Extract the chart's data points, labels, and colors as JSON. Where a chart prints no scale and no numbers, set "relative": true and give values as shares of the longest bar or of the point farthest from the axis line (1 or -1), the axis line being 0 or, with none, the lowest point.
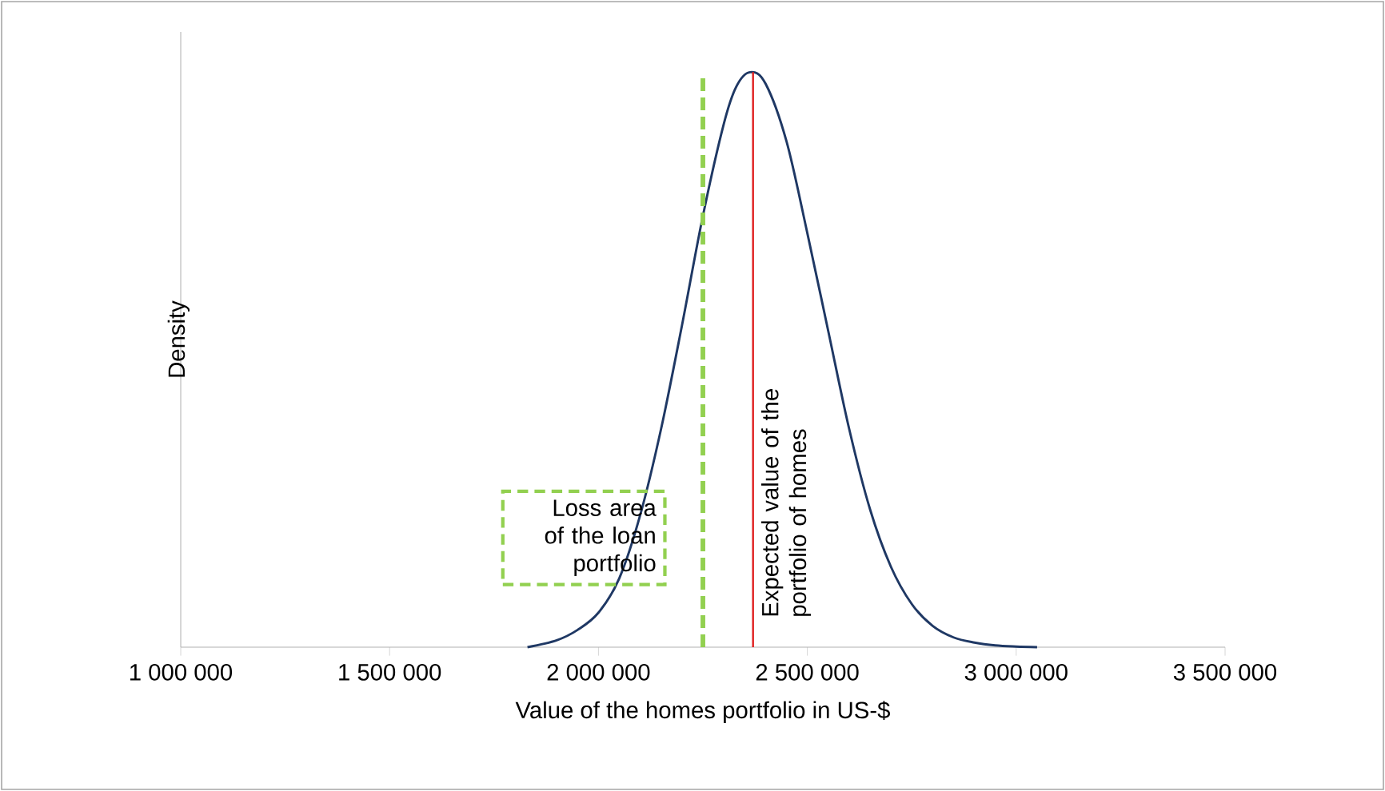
{
  "chart_data": {
    "type": "line",
    "relative": true,
    "xlabel": "Value of the homes portfolio  in US-$",
    "ylabel": "Density",
    "x": [
      1830000,
      1900000,
      1950000,
      2000000,
      2050000,
      2100000,
      2150000,
      2200000,
      2250000,
      2300000,
      2330000,
      2363000,
      2400000,
      2450000,
      2500000,
      2550000,
      2600000,
      2650000,
      2700000,
      2750000,
      2800000,
      2850000,
      2900000,
      2950000,
      3000000,
      3050000
    ],
    "series": [
      {
        "color": "#1f3864",
        "values": [
          0.0,
          0.012,
          0.03,
          0.06,
          0.12,
          0.23,
          0.38,
          0.56,
          0.75,
          0.91,
          0.975,
          1.0,
          0.98,
          0.88,
          0.72,
          0.55,
          0.38,
          0.24,
          0.14,
          0.075,
          0.037,
          0.017,
          0.008,
          0.003,
          0.001,
          0.0
        ]
      }
    ],
    "xlim": [
      1000000,
      3500000
    ],
    "xticks": [
      {
        "value": 1000000,
        "label": "1 000 000"
      },
      {
        "value": 1500000,
        "label": "1 500 000"
      },
      {
        "value": 2000000,
        "label": "2 000 000"
      },
      {
        "value": 2500000,
        "label": "2 500 000"
      },
      {
        "value": 3000000,
        "label": "3 000 000"
      },
      {
        "value": 3500000,
        "label": "3 500 000"
      }
    ],
    "ref_lines": [
      {
        "axis": "x",
        "value": 2250000,
        "color": "#92d050",
        "line_style": "dashed"
      },
      {
        "axis": "x",
        "value": 2370000,
        "color": "#e02020",
        "label": "Expected value of the portfolio of homes"
      }
    ],
    "annotations": [
      "Loss area of the loan portfolio"
    ],
    "grid": false,
    "marker": "none",
    "line_style": "solid"
  }
}
